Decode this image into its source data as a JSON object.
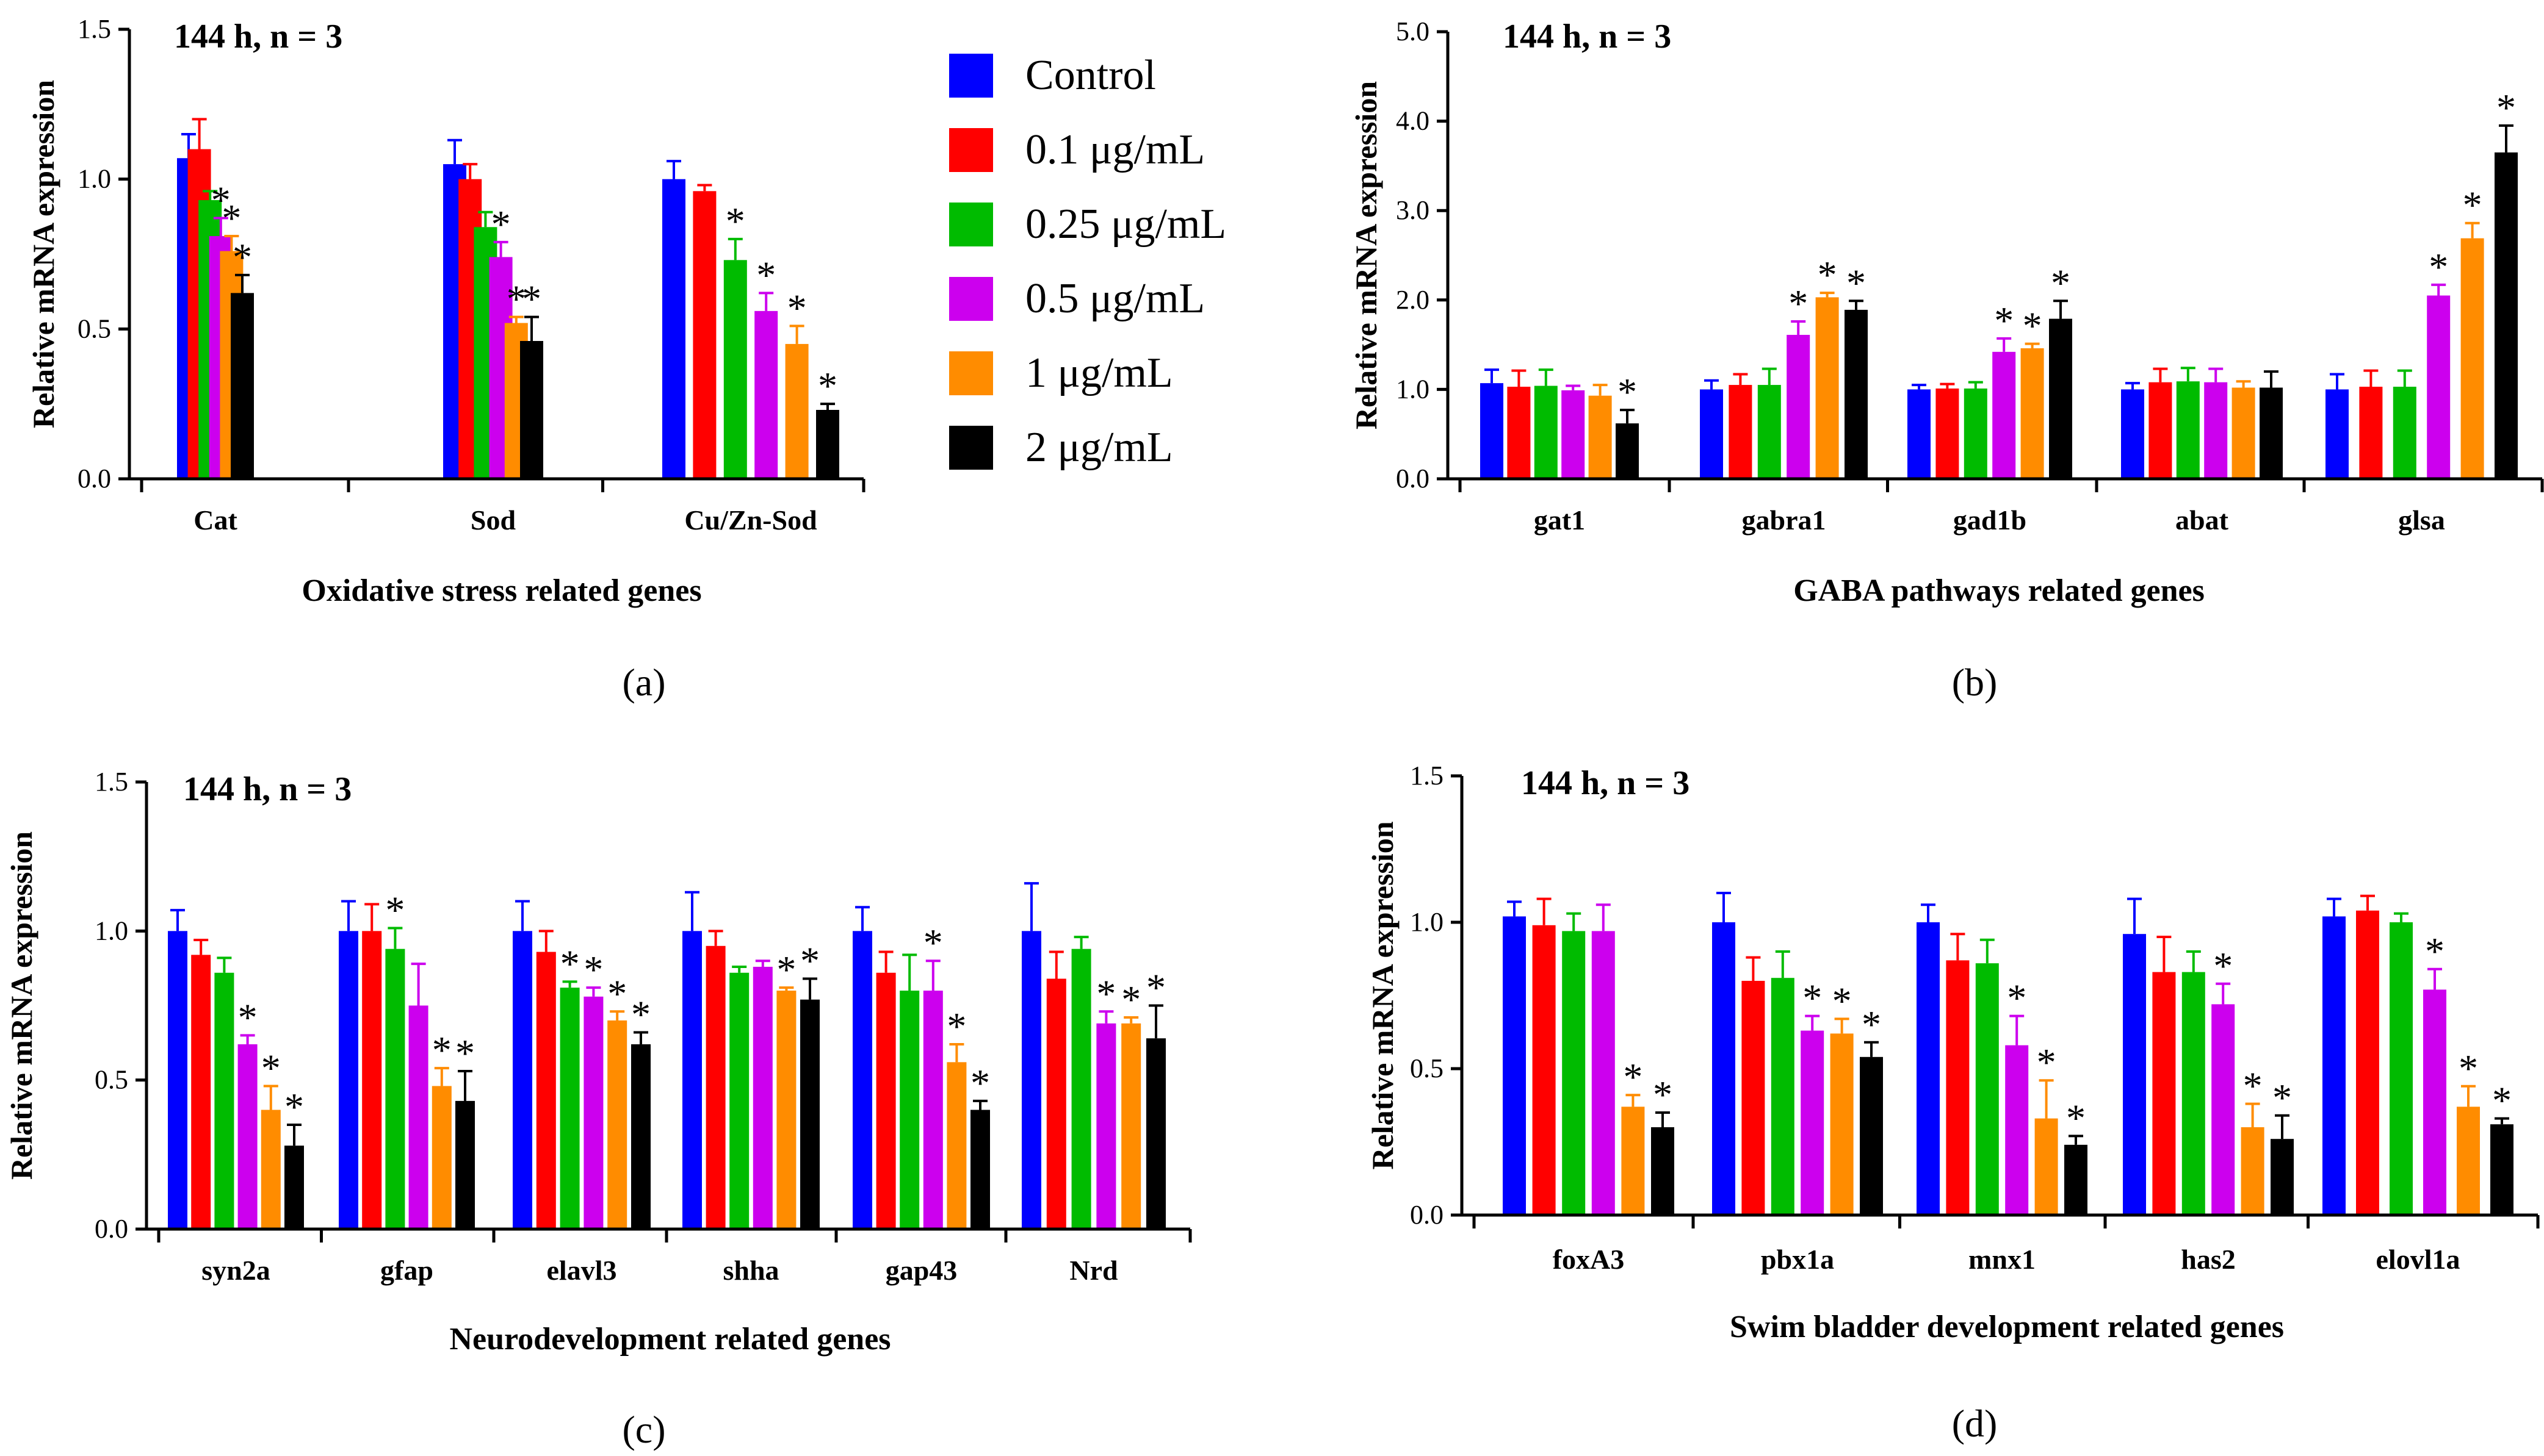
{
  "legend": {
    "entries": [
      {
        "label": "Control",
        "color": "#0000ff"
      },
      {
        "label": "0.1 μg/mL",
        "color": "#ff0000"
      },
      {
        "label": "0.25 μg/mL",
        "color": "#00bb00"
      },
      {
        "label": "0.5 μg/mL",
        "color": "#cc00ee"
      },
      {
        "label": "1 μg/mL",
        "color": "#ff8c00"
      },
      {
        "label": "2 μg/mL",
        "color": "#000000"
      }
    ]
  },
  "chart_data": [
    {
      "panel": "(a)",
      "type": "bar",
      "title": "144 h, n = 3",
      "xlabel": "Oxidative stress related genes",
      "ylabel": "Relative mRNA expression",
      "ylim": [
        0,
        1.5
      ],
      "yticks": [
        "0.0",
        "0.5",
        "1.0",
        "1.5"
      ],
      "categories": [
        "Cat",
        "Sod",
        "Cu/Zn-Sod"
      ],
      "series": [
        {
          "name": "Control",
          "values": [
            1.07,
            1.05,
            1.0
          ],
          "errors": [
            0.08,
            0.08,
            0.06
          ]
        },
        {
          "name": "0.1 μg/mL",
          "values": [
            1.1,
            1.0,
            0.96
          ],
          "errors": [
            0.1,
            0.05,
            0.02
          ]
        },
        {
          "name": "0.25 μg/mL",
          "values": [
            0.93,
            0.84,
            0.73
          ],
          "errors": [
            0.03,
            0.05,
            0.07
          ]
        },
        {
          "name": "0.5 μg/mL",
          "values": [
            0.81,
            0.74,
            0.56
          ],
          "errors": [
            0.06,
            0.05,
            0.06
          ]
        },
        {
          "name": "1 μg/mL",
          "values": [
            0.76,
            0.52,
            0.45
          ],
          "errors": [
            0.05,
            0.02,
            0.06
          ]
        },
        {
          "name": "2 μg/mL",
          "values": [
            0.62,
            0.46,
            0.23
          ],
          "errors": [
            0.06,
            0.08,
            0.02
          ]
        }
      ],
      "significance": [
        [
          false,
          false,
          false,
          true,
          true,
          true
        ],
        [
          false,
          false,
          false,
          true,
          true,
          true
        ],
        [
          false,
          false,
          true,
          true,
          true,
          true
        ]
      ]
    },
    {
      "panel": "(b)",
      "type": "bar",
      "title": "144 h, n = 3",
      "xlabel": "GABA pathways related genes",
      "ylabel": "Relative mRNA expression",
      "ylim": [
        0,
        5
      ],
      "yticks": [
        "0.0",
        "1.0",
        "2.0",
        "3.0",
        "4.0",
        "5.0"
      ],
      "categories": [
        "gat1",
        "gabra1",
        "gad1b",
        "abat",
        "glsa"
      ],
      "series": [
        {
          "name": "Control",
          "values": [
            1.07,
            1.0,
            1.0,
            1.0,
            1.0
          ],
          "errors": [
            0.15,
            0.1,
            0.05,
            0.07,
            0.17
          ]
        },
        {
          "name": "0.1 μg/mL",
          "values": [
            1.03,
            1.05,
            1.01,
            1.08,
            1.03
          ],
          "errors": [
            0.18,
            0.12,
            0.05,
            0.15,
            0.18
          ]
        },
        {
          "name": "0.25 μg/mL",
          "values": [
            1.04,
            1.05,
            1.01,
            1.09,
            1.03
          ],
          "errors": [
            0.18,
            0.18,
            0.07,
            0.15,
            0.18
          ]
        },
        {
          "name": "0.5 μg/mL",
          "values": [
            0.99,
            1.61,
            1.42,
            1.08,
            2.05
          ],
          "errors": [
            0.05,
            0.15,
            0.15,
            0.15,
            0.12
          ]
        },
        {
          "name": "1 μg/mL",
          "values": [
            0.93,
            2.03,
            1.46,
            1.02,
            2.69
          ],
          "errors": [
            0.12,
            0.05,
            0.05,
            0.07,
            0.17
          ]
        },
        {
          "name": "2 μg/mL",
          "values": [
            0.62,
            1.89,
            1.79,
            1.02,
            3.65
          ],
          "errors": [
            0.15,
            0.1,
            0.2,
            0.18,
            0.3
          ]
        }
      ],
      "significance": [
        [
          false,
          false,
          false,
          false,
          false,
          true
        ],
        [
          false,
          false,
          false,
          true,
          true,
          true
        ],
        [
          false,
          false,
          false,
          true,
          true,
          true
        ],
        [
          false,
          false,
          false,
          false,
          false,
          false
        ],
        [
          false,
          false,
          false,
          true,
          true,
          true
        ]
      ]
    },
    {
      "panel": "(c)",
      "type": "bar",
      "title": "144 h, n = 3",
      "xlabel": "Neurodevelopment related genes",
      "ylabel": "Relative mRNA expression",
      "ylim": [
        0,
        1.5
      ],
      "yticks": [
        "0.0",
        "0.5",
        "1.0",
        "1.5"
      ],
      "categories": [
        "syn2a",
        "gfap",
        "elavl3",
        "shha",
        "gap43",
        "Nrd"
      ],
      "series": [
        {
          "name": "Control",
          "values": [
            1.0,
            1.0,
            1.0,
            1.0,
            1.0,
            1.0
          ],
          "errors": [
            0.07,
            0.1,
            0.1,
            0.13,
            0.08,
            0.16
          ]
        },
        {
          "name": "0.1 μg/mL",
          "values": [
            0.92,
            1.0,
            0.93,
            0.95,
            0.86,
            0.84
          ],
          "errors": [
            0.05,
            0.09,
            0.07,
            0.05,
            0.07,
            0.09
          ]
        },
        {
          "name": "0.25 μg/mL",
          "values": [
            0.86,
            0.94,
            0.81,
            0.86,
            0.8,
            0.94
          ],
          "errors": [
            0.05,
            0.07,
            0.02,
            0.02,
            0.12,
            0.04
          ]
        },
        {
          "name": "0.5 μg/mL",
          "values": [
            0.62,
            0.75,
            0.78,
            0.88,
            0.8,
            0.69
          ],
          "errors": [
            0.03,
            0.14,
            0.03,
            0.02,
            0.1,
            0.04
          ]
        },
        {
          "name": "1 μg/mL",
          "values": [
            0.4,
            0.48,
            0.7,
            0.8,
            0.56,
            0.69
          ],
          "errors": [
            0.08,
            0.06,
            0.03,
            0.01,
            0.06,
            0.02
          ]
        },
        {
          "name": "2 μg/mL",
          "values": [
            0.28,
            0.43,
            0.62,
            0.77,
            0.4,
            0.64
          ],
          "errors": [
            0.07,
            0.1,
            0.04,
            0.07,
            0.03,
            0.11
          ]
        }
      ],
      "significance": [
        [
          false,
          false,
          false,
          true,
          true,
          true
        ],
        [
          false,
          false,
          true,
          false,
          true,
          true
        ],
        [
          false,
          false,
          true,
          true,
          true,
          true
        ],
        [
          false,
          false,
          false,
          false,
          true,
          true
        ],
        [
          false,
          false,
          false,
          true,
          true,
          true
        ],
        [
          false,
          false,
          false,
          true,
          true,
          true
        ]
      ]
    },
    {
      "panel": "(d)",
      "type": "bar",
      "title": "144 h, n = 3",
      "xlabel": "Swim bladder development related genes",
      "ylabel": "Relative mRNA expression",
      "ylim": [
        0,
        1.5
      ],
      "yticks": [
        "0.0",
        "0.5",
        "1.0",
        "1.5"
      ],
      "categories": [
        "foxA3",
        "pbx1a",
        "mnx1",
        "has2",
        "elovl1a"
      ],
      "series": [
        {
          "name": "Control",
          "values": [
            1.02,
            1.0,
            1.0,
            0.96,
            1.02
          ],
          "errors": [
            0.05,
            0.1,
            0.06,
            0.12,
            0.06
          ]
        },
        {
          "name": "0.1 μg/mL",
          "values": [
            0.99,
            0.8,
            0.87,
            0.83,
            1.04
          ],
          "errors": [
            0.09,
            0.08,
            0.09,
            0.12,
            0.05
          ]
        },
        {
          "name": "0.25 μg/mL",
          "values": [
            0.97,
            0.81,
            0.86,
            0.83,
            1.0
          ],
          "errors": [
            0.06,
            0.09,
            0.08,
            0.07,
            0.03
          ]
        },
        {
          "name": "0.5 μg/mL",
          "values": [
            0.97,
            0.63,
            0.58,
            0.72,
            0.77
          ],
          "errors": [
            0.09,
            0.05,
            0.1,
            0.07,
            0.07
          ]
        },
        {
          "name": "1 μg/mL",
          "values": [
            0.37,
            0.62,
            0.33,
            0.3,
            0.37
          ],
          "errors": [
            0.04,
            0.05,
            0.13,
            0.08,
            0.07
          ]
        },
        {
          "name": "2 μg/mL",
          "values": [
            0.3,
            0.54,
            0.24,
            0.26,
            0.31
          ],
          "errors": [
            0.05,
            0.05,
            0.03,
            0.08,
            0.02
          ]
        }
      ],
      "significance": [
        [
          false,
          false,
          false,
          false,
          true,
          true
        ],
        [
          false,
          false,
          false,
          true,
          true,
          true
        ],
        [
          false,
          false,
          false,
          true,
          true,
          true
        ],
        [
          false,
          false,
          false,
          true,
          true,
          true
        ],
        [
          false,
          false,
          false,
          true,
          true,
          true
        ]
      ]
    }
  ]
}
